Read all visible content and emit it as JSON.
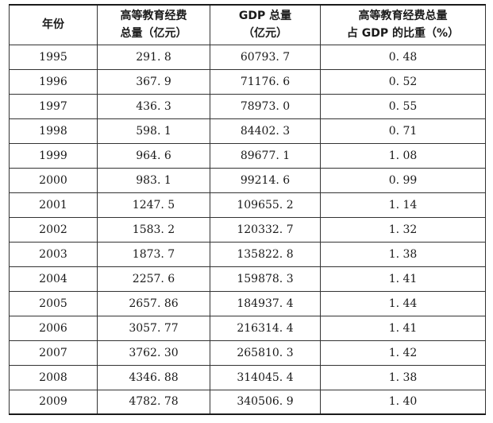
{
  "table": {
    "headers": [
      {
        "lines": [
          "年份"
        ]
      },
      {
        "lines": [
          "高等教育经费",
          "总量（亿元）"
        ]
      },
      {
        "lines": [
          "GDP 总量",
          "（亿元）"
        ]
      },
      {
        "lines": [
          "高等教育经费总量",
          "占 GDP 的比重（%）"
        ]
      }
    ],
    "rows": [
      [
        "1995",
        "291. 8",
        "60793. 7",
        "0. 48"
      ],
      [
        "1996",
        "367. 9",
        "71176. 6",
        "0. 52"
      ],
      [
        "1997",
        "436. 3",
        "78973. 0",
        "0. 55"
      ],
      [
        "1998",
        "598. 1",
        "84402. 3",
        "0. 71"
      ],
      [
        "1999",
        "964. 6",
        "89677. 1",
        "1. 08"
      ],
      [
        "2000",
        "983. 1",
        "99214. 6",
        "0. 99"
      ],
      [
        "2001",
        "1247. 5",
        "109655. 2",
        "1. 14"
      ],
      [
        "2002",
        "1583. 2",
        "120332. 7",
        "1. 32"
      ],
      [
        "2003",
        "1873. 7",
        "135822. 8",
        "1. 38"
      ],
      [
        "2004",
        "2257. 6",
        "159878. 3",
        "1. 41"
      ],
      [
        "2005",
        "2657. 86",
        "184937. 4",
        "1. 44"
      ],
      [
        "2006",
        "3057. 77",
        "216314. 4",
        "1. 41"
      ],
      [
        "2007",
        "3762. 30",
        "265810. 3",
        "1. 42"
      ],
      [
        "2008",
        "4346. 88",
        "314045. 4",
        "1. 38"
      ],
      [
        "2009",
        "4782. 78",
        "340506. 9",
        "1. 40"
      ]
    ]
  }
}
